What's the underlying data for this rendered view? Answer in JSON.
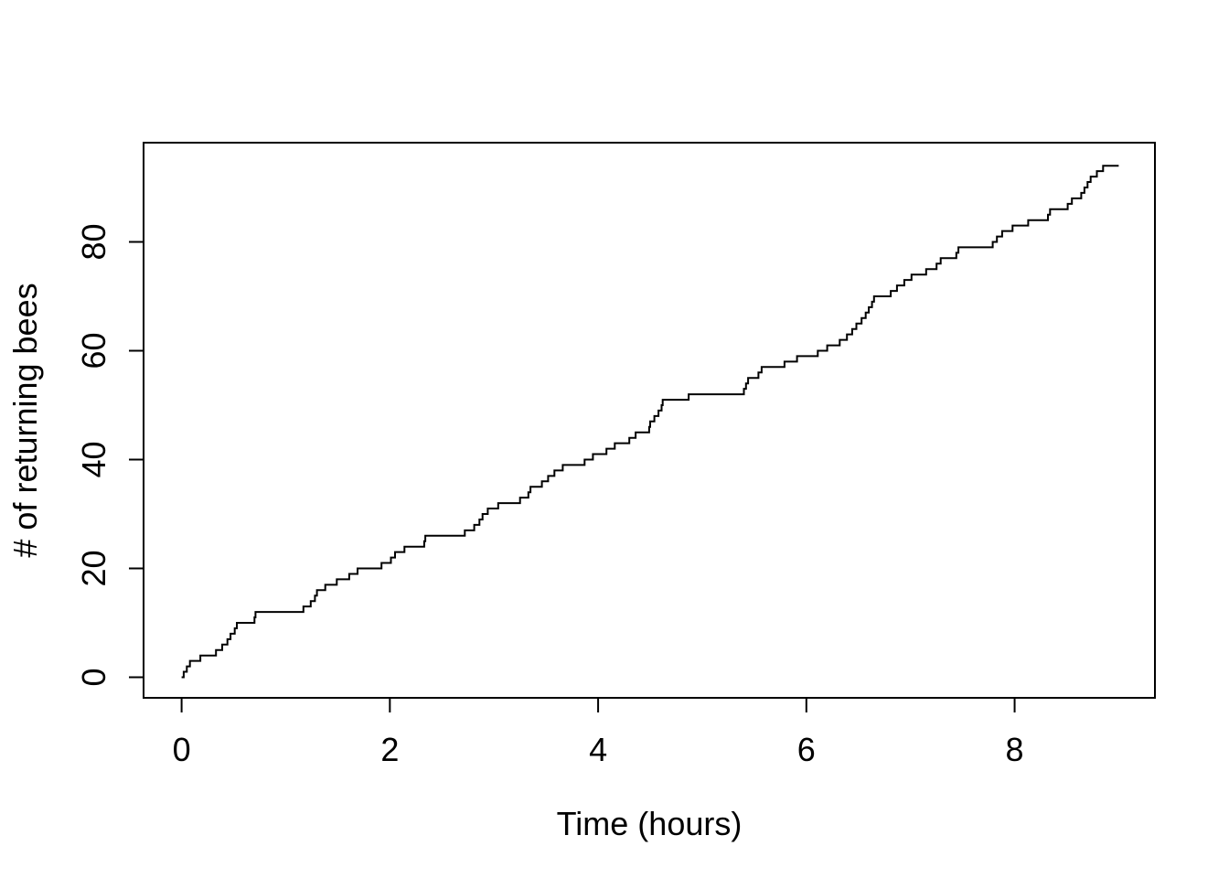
{
  "page": {
    "background": "#ffffff"
  },
  "chart_data": {
    "type": "line",
    "line_style": "step-post",
    "title": "",
    "xlabel": "Time (hours)",
    "ylabel": "# of returning bees",
    "x_ticks": [
      0,
      2,
      4,
      6,
      8
    ],
    "y_ticks": [
      0,
      20,
      40,
      60,
      80
    ],
    "xlim": [
      -0.37,
      9.35
    ],
    "ylim": [
      -3.8,
      98.2
    ],
    "grid": false,
    "legend": "none",
    "line_color": "#000000",
    "axis_color": "#000000",
    "background_color": "#ffffff",
    "start_point": {
      "x": 0,
      "y": 0
    },
    "end_x": 9.0,
    "final_count": 94,
    "event_times": [
      0.02,
      0.05,
      0.08,
      0.18,
      0.33,
      0.39,
      0.44,
      0.47,
      0.51,
      0.53,
      0.7,
      0.71,
      1.17,
      1.24,
      1.28,
      1.3,
      1.38,
      1.49,
      1.61,
      1.69,
      1.92,
      2.01,
      2.05,
      2.14,
      2.33,
      2.34,
      2.72,
      2.81,
      2.86,
      2.89,
      2.94,
      3.04,
      3.25,
      3.33,
      3.35,
      3.46,
      3.52,
      3.58,
      3.66,
      3.87,
      3.95,
      4.08,
      4.16,
      4.3,
      4.36,
      4.49,
      4.5,
      4.54,
      4.58,
      4.61,
      4.62,
      4.87,
      5.4,
      5.42,
      5.44,
      5.54,
      5.57,
      5.79,
      5.91,
      6.11,
      6.2,
      6.32,
      6.39,
      6.44,
      6.48,
      6.53,
      6.57,
      6.6,
      6.63,
      6.65,
      6.81,
      6.87,
      6.94,
      7.01,
      7.15,
      7.25,
      7.29,
      7.44,
      7.46,
      7.79,
      7.83,
      7.88,
      7.98,
      8.13,
      8.32,
      8.34,
      8.51,
      8.55,
      8.64,
      8.67,
      8.7,
      8.73,
      8.79,
      8.85
    ]
  }
}
